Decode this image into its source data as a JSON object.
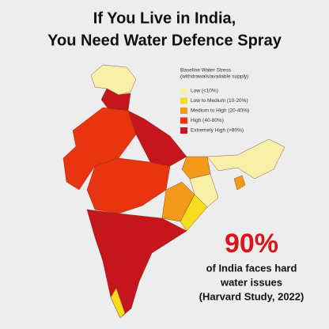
{
  "header": {
    "title_line1": "If You Live in India,",
    "title_line2": "You Need Water Defence Spray"
  },
  "legend": {
    "title": "Baseline Water Stress",
    "subtitle": "(withdrawals/available supply)",
    "items": [
      {
        "label": "Low (<10%)",
        "color": "#f8f0a8"
      },
      {
        "label": "Low to Medium (10-20%)",
        "color": "#f5dc1e"
      },
      {
        "label": "Medium to High (20-40%)",
        "color": "#f39a1a"
      },
      {
        "label": "High (40-80%)",
        "color": "#e8350f"
      },
      {
        "label": "Extremely High (>80%)",
        "color": "#c4161c"
      }
    ]
  },
  "callout": {
    "stat": "90%",
    "line1": "of India faces hard",
    "line2": "water issues",
    "line3": "(Harvard Study, 2022)"
  }
}
